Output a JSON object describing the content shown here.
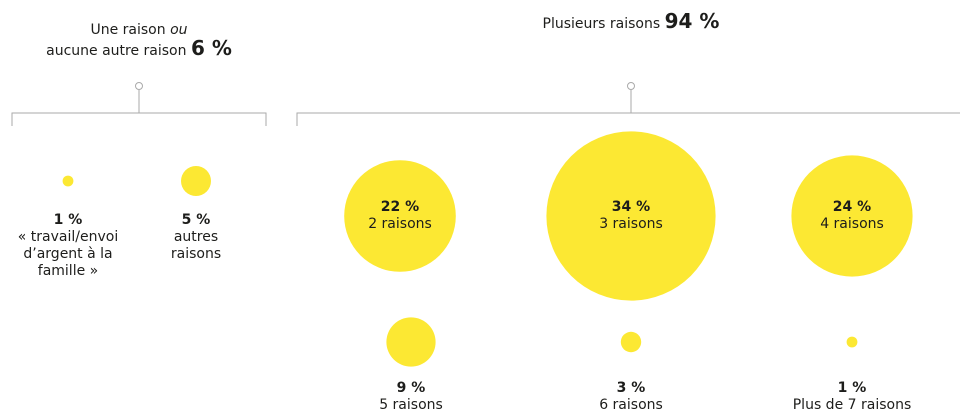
{
  "chart_data": {
    "type": "bubble",
    "color": "#fce833",
    "groups": [
      {
        "title_start": "Une raison",
        "title_em": "ou",
        "title_end": "aucune autre raison",
        "value": 6,
        "value_label": "6 %",
        "items": [
          {
            "value": 1,
            "value_label": "1 %",
            "name": "« travail/envoi d’argent à la famille »"
          },
          {
            "value": 5,
            "value_label": "5 %",
            "name": "autres raisons"
          }
        ]
      },
      {
        "title_start": "Plusieurs raisons",
        "value": 94,
        "value_label": "94 %",
        "items": [
          {
            "value": 22,
            "value_label": "22 %",
            "name": "2 raisons"
          },
          {
            "value": 34,
            "value_label": "34 %",
            "name": "3 raisons"
          },
          {
            "value": 24,
            "value_label": "24 %",
            "name": "4 raisons"
          },
          {
            "value": 9,
            "value_label": "9 %",
            "name": "5 raisons"
          },
          {
            "value": 3,
            "value_label": "3 %",
            "name": "6 raisons"
          },
          {
            "value": 1,
            "value_label": "1 %",
            "name": "Plus de 7 raisons"
          }
        ]
      }
    ]
  }
}
